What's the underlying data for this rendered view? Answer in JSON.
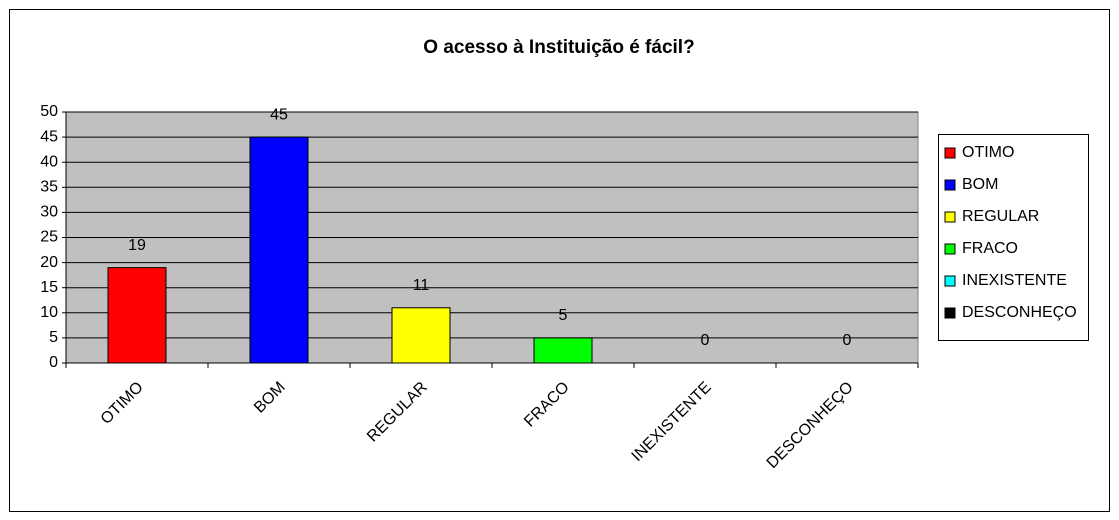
{
  "chart_data": {
    "type": "bar",
    "title": "O acesso à Instituição é fácil?",
    "categories": [
      "OTIMO",
      "BOM",
      "REGULAR",
      "FRACO",
      "INEXISTENTE",
      "DESCONHEÇO"
    ],
    "values": [
      19,
      45,
      11,
      5,
      0,
      0
    ],
    "colors": [
      "#ff0000",
      "#0000ff",
      "#ffff00",
      "#00ff00",
      "#00ffff",
      "#000000"
    ],
    "ylim": [
      0,
      50
    ],
    "yticks": [
      0,
      5,
      10,
      15,
      20,
      25,
      30,
      35,
      40,
      45,
      50
    ],
    "grid": true,
    "legend": "right"
  }
}
